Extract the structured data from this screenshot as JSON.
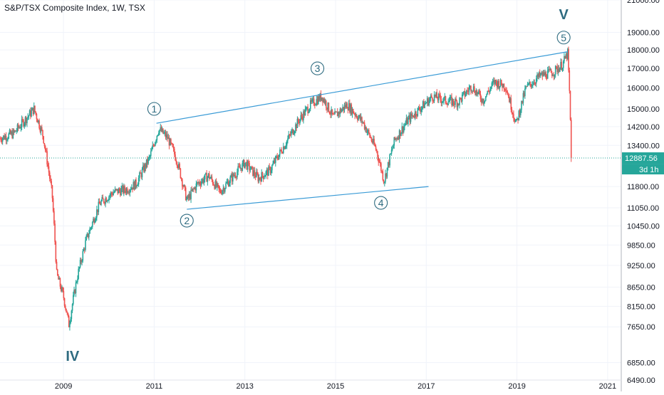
{
  "header": {
    "title": "S&P/TSX Composite Index, 1W, TSX"
  },
  "price_label": {
    "value": "12887.56",
    "countdown": "3d 1h",
    "color": "#26a69a"
  },
  "colors": {
    "up": "#26a69a",
    "down": "#ef5350",
    "trend": "#3a9bd6",
    "wave": "#2e6b80",
    "guide": "#26a69a"
  },
  "chart_data": {
    "type": "candlestick",
    "x_range": [
      2007.6,
      2021.3
    ],
    "y_range": [
      6490,
      21000
    ],
    "y_ticks": [
      "21000.00",
      "19000.00",
      "18000.00",
      "17000.00",
      "16000.00",
      "15000.00",
      "14200.00",
      "13400.00",
      "11800.00",
      "11050.00",
      "10450.00",
      "9850.00",
      "9250.00",
      "8650.00",
      "8150.00",
      "7650.00",
      "6850.00",
      "6490.00"
    ],
    "x_ticks": [
      {
        "label": "2009",
        "x": 2009.0
      },
      {
        "label": "2011",
        "x": 2011.0
      },
      {
        "label": "2013",
        "x": 2013.0
      },
      {
        "label": "2015",
        "x": 2015.0
      },
      {
        "label": "2017",
        "x": 2017.0
      },
      {
        "label": "2019",
        "x": 2019.0
      },
      {
        "label": "2021",
        "x": 2021.0
      }
    ],
    "last_price": 12887.56,
    "close_path": [
      [
        2007.6,
        13700
      ],
      [
        2007.9,
        13900
      ],
      [
        2008.15,
        14500
      ],
      [
        2008.35,
        15000
      ],
      [
        2008.55,
        13800
      ],
      [
        2008.75,
        11500
      ],
      [
        2008.85,
        9000
      ],
      [
        2009.0,
        8400
      ],
      [
        2009.12,
        7700
      ],
      [
        2009.3,
        8900
      ],
      [
        2009.5,
        10000
      ],
      [
        2009.8,
        11200
      ],
      [
        2010.1,
        11600
      ],
      [
        2010.4,
        11700
      ],
      [
        2010.6,
        11900
      ],
      [
        2010.9,
        12900
      ],
      [
        2011.1,
        14100
      ],
      [
        2011.3,
        13700
      ],
      [
        2011.5,
        12800
      ],
      [
        2011.72,
        11300
      ],
      [
        2011.95,
        11900
      ],
      [
        2012.2,
        12200
      ],
      [
        2012.45,
        11600
      ],
      [
        2012.7,
        12100
      ],
      [
        2013.0,
        12700
      ],
      [
        2013.3,
        12100
      ],
      [
        2013.55,
        12400
      ],
      [
        2013.9,
        13500
      ],
      [
        2014.2,
        14500
      ],
      [
        2014.45,
        15200
      ],
      [
        2014.7,
        15600
      ],
      [
        2014.95,
        14600
      ],
      [
        2015.25,
        15200
      ],
      [
        2015.6,
        14400
      ],
      [
        2015.9,
        13200
      ],
      [
        2016.07,
        12000
      ],
      [
        2016.3,
        13600
      ],
      [
        2016.6,
        14500
      ],
      [
        2016.9,
        15100
      ],
      [
        2017.15,
        15600
      ],
      [
        2017.4,
        15400
      ],
      [
        2017.7,
        15300
      ],
      [
        2018.0,
        16100
      ],
      [
        2018.25,
        15400
      ],
      [
        2018.5,
        16300
      ],
      [
        2018.75,
        16100
      ],
      [
        2018.98,
        14300
      ],
      [
        2019.2,
        16000
      ],
      [
        2019.5,
        16600
      ],
      [
        2019.8,
        16800
      ],
      [
        2020.0,
        17200
      ],
      [
        2020.12,
        17800
      ],
      [
        2020.16,
        15600
      ],
      [
        2020.2,
        12887.56
      ]
    ],
    "trend_lines": [
      {
        "from": [
          2011.05,
          14350
        ],
        "to": [
          2020.12,
          17900
        ]
      },
      {
        "from": [
          2011.72,
          11000
        ],
        "to": [
          2017.05,
          11800
        ]
      }
    ],
    "wave_labels": [
      {
        "label": "1",
        "x": 2011.0,
        "y": 15000,
        "style": "circled"
      },
      {
        "label": "2",
        "x": 2011.72,
        "y": 10620,
        "style": "circled"
      },
      {
        "label": "3",
        "x": 2014.6,
        "y": 17000,
        "style": "circled"
      },
      {
        "label": "4",
        "x": 2016.0,
        "y": 11220,
        "style": "circled"
      },
      {
        "label": "5",
        "x": 2020.03,
        "y": 18700,
        "style": "circled"
      },
      {
        "label": "V",
        "x": 2020.03,
        "y": 20100,
        "style": "bold"
      },
      {
        "label": "IV",
        "x": 2009.2,
        "y": 6990,
        "style": "bold"
      }
    ]
  }
}
